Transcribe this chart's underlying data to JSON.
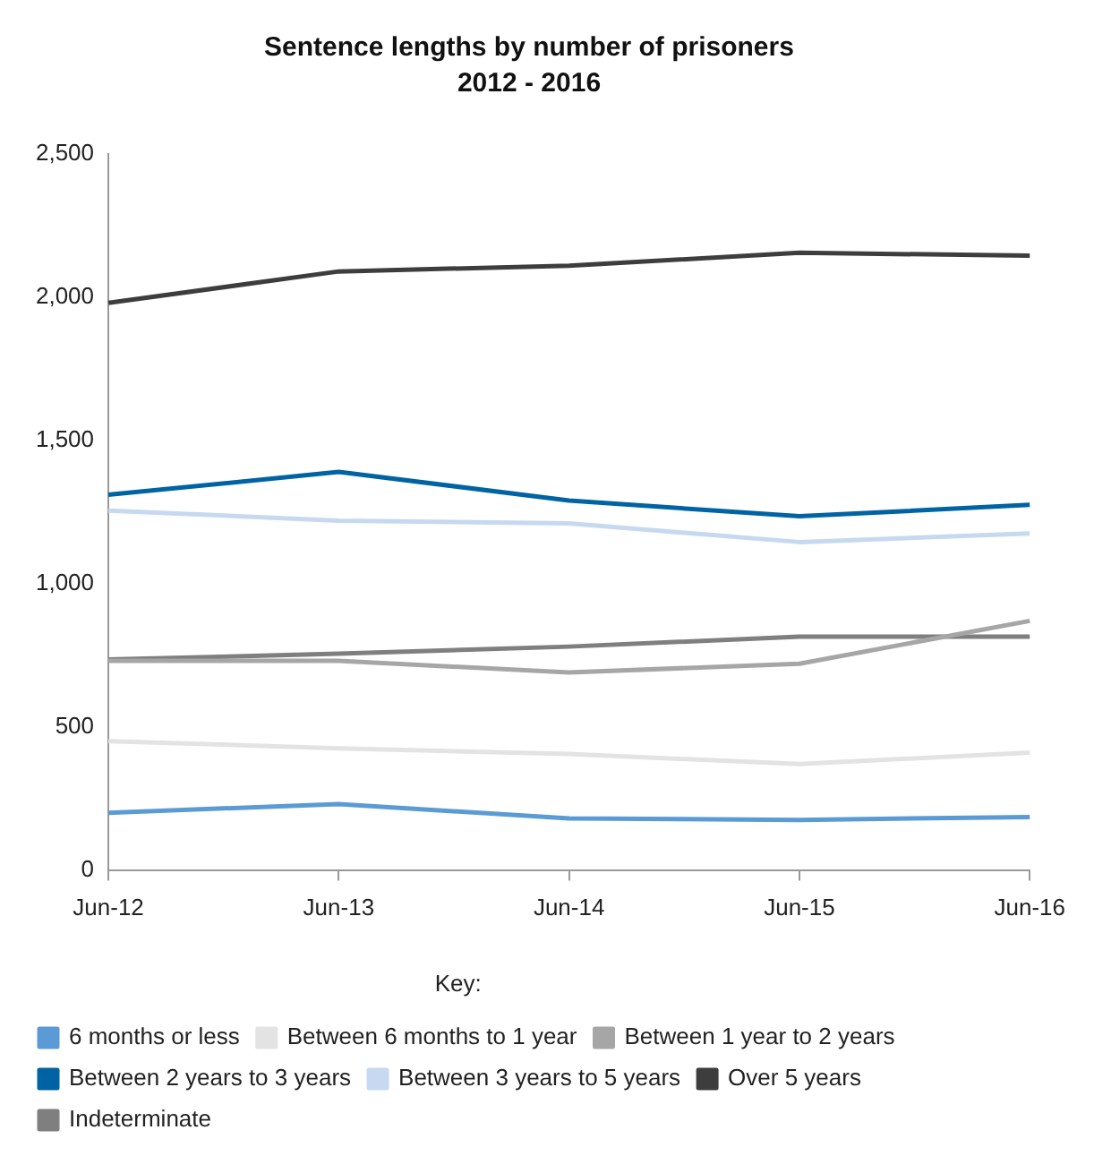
{
  "chart_data": {
    "type": "line",
    "title": "Sentence lengths by number of prisoners",
    "subtitle": "2012 - 2016",
    "legend_title": "Key:",
    "categories": [
      "Jun-12",
      "Jun-13",
      "Jun-14",
      "Jun-15",
      "Jun-16"
    ],
    "series": [
      {
        "name": "6 months or less",
        "color": "#5b9bd5",
        "values": [
          200,
          230,
          180,
          175,
          185
        ]
      },
      {
        "name": "Between 6 months to 1 year",
        "color": "#e3e3e3",
        "values": [
          450,
          425,
          405,
          370,
          410
        ]
      },
      {
        "name": "Between 1 year to 2 years",
        "color": "#a6a6a6",
        "values": [
          730,
          730,
          690,
          720,
          870
        ]
      },
      {
        "name": "Between 2 years to 3 years",
        "color": "#0063a3",
        "values": [
          1310,
          1390,
          1290,
          1235,
          1275
        ]
      },
      {
        "name": "Between 3 years to 5 years",
        "color": "#c6d9f0",
        "values": [
          1255,
          1220,
          1210,
          1145,
          1175
        ]
      },
      {
        "name": "Over 5 years",
        "color": "#3d3d3d",
        "values": [
          1980,
          2090,
          2110,
          2155,
          2145
        ]
      },
      {
        "name": "Indeterminate",
        "color": "#7f7f7f",
        "values": [
          735,
          755,
          780,
          815,
          815
        ]
      }
    ],
    "ylim": [
      0,
      2500
    ],
    "yticks": [
      0,
      {
        "value": 500,
        "label": "500"
      },
      {
        "value": 1000,
        "label": "1,000"
      },
      {
        "value": 1500,
        "label": "1,500"
      },
      {
        "value": 2000,
        "label": "2,000"
      },
      {
        "value": 2500,
        "label": "2,500"
      }
    ],
    "grid": false,
    "legend": "bottom",
    "marker": "none",
    "line_style": "solid"
  }
}
